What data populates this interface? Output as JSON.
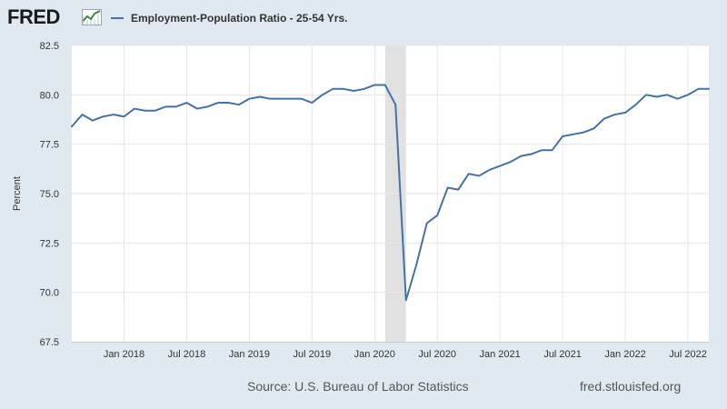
{
  "header": {
    "logo_text": "FRED",
    "logo_icon": "line-graph-icon"
  },
  "colors": {
    "line": "#4572a7",
    "recession": "#e1e1e1",
    "grid": "#e6e6e6",
    "plot_bg": "#ffffff",
    "page_bg": "#e1e9f0"
  },
  "footer": {
    "source": "Source: U.S. Bureau of Labor Statistics",
    "url": "fred.stlouisfed.org"
  },
  "chart_data": {
    "type": "line",
    "title": "",
    "xlabel": "",
    "ylabel": "Percent",
    "ylim": [
      67.5,
      82.5
    ],
    "yticks": [
      67.5,
      70.0,
      72.5,
      75.0,
      77.5,
      80.0,
      82.5
    ],
    "ytick_labels": [
      "67.5",
      "70.0",
      "72.5",
      "75.0",
      "77.5",
      "80.0",
      "82.5"
    ],
    "xlim": [
      "2017-08",
      "2022-09"
    ],
    "xtick_labels": [
      {
        "label": "Jan 2018",
        "date": "2018-01"
      },
      {
        "label": "Jul 2018",
        "date": "2018-07"
      },
      {
        "label": "Jan 2019",
        "date": "2019-01"
      },
      {
        "label": "Jul 2019",
        "date": "2019-07"
      },
      {
        "label": "Jan 2020",
        "date": "2020-01"
      },
      {
        "label": "Jul 2020",
        "date": "2020-07"
      },
      {
        "label": "Jan 2021",
        "date": "2021-01"
      },
      {
        "label": "Jul 2021",
        "date": "2021-07"
      },
      {
        "label": "Jan 2022",
        "date": "2022-01"
      },
      {
        "label": "Jul 2022",
        "date": "2022-07"
      }
    ],
    "grid": true,
    "legend_position": "top-left",
    "recession_shading": [
      {
        "start": "2020-02",
        "end": "2020-04"
      }
    ],
    "series": [
      {
        "name": "Employment-Population Ratio - 25-54 Yrs.",
        "x": [
          "2017-08",
          "2017-09",
          "2017-10",
          "2017-11",
          "2017-12",
          "2018-01",
          "2018-02",
          "2018-03",
          "2018-04",
          "2018-05",
          "2018-06",
          "2018-07",
          "2018-08",
          "2018-09",
          "2018-10",
          "2018-11",
          "2018-12",
          "2019-01",
          "2019-02",
          "2019-03",
          "2019-04",
          "2019-05",
          "2019-06",
          "2019-07",
          "2019-08",
          "2019-09",
          "2019-10",
          "2019-11",
          "2019-12",
          "2020-01",
          "2020-02",
          "2020-03",
          "2020-04",
          "2020-05",
          "2020-06",
          "2020-07",
          "2020-08",
          "2020-09",
          "2020-10",
          "2020-11",
          "2020-12",
          "2021-01",
          "2021-02",
          "2021-03",
          "2021-04",
          "2021-05",
          "2021-06",
          "2021-07",
          "2021-08",
          "2021-09",
          "2021-10",
          "2021-11",
          "2021-12",
          "2022-01",
          "2022-02",
          "2022-03",
          "2022-04",
          "2022-05",
          "2022-06",
          "2022-07",
          "2022-08",
          "2022-09"
        ],
        "values": [
          78.4,
          79.0,
          78.7,
          78.9,
          79.0,
          78.9,
          79.3,
          79.2,
          79.2,
          79.4,
          79.4,
          79.6,
          79.3,
          79.4,
          79.6,
          79.6,
          79.5,
          79.8,
          79.9,
          79.8,
          79.8,
          79.8,
          79.8,
          79.6,
          80.0,
          80.3,
          80.3,
          80.2,
          80.3,
          80.5,
          80.5,
          79.5,
          69.6,
          71.4,
          73.5,
          73.9,
          75.3,
          75.2,
          76.0,
          75.9,
          76.2,
          76.4,
          76.6,
          76.9,
          77.0,
          77.2,
          77.2,
          77.9,
          78.0,
          78.1,
          78.3,
          78.8,
          79.0,
          79.1,
          79.5,
          80.0,
          79.9,
          80.0,
          79.8,
          80.0,
          80.3,
          80.3
        ]
      }
    ]
  }
}
